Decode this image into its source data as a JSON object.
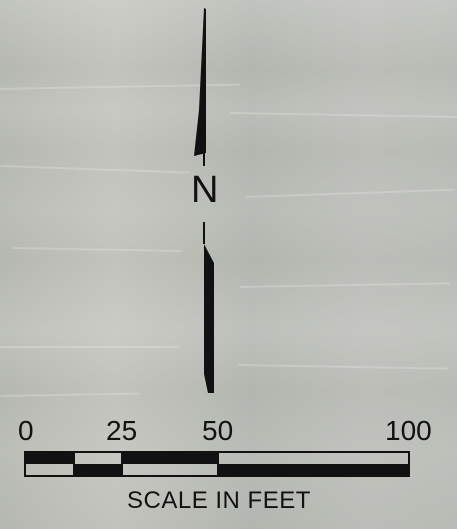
{
  "map": {
    "north_label": "N",
    "scale": {
      "ticks": [
        "0",
        "25",
        "50",
        "100"
      ],
      "caption": "SCALE IN FEET"
    }
  }
}
